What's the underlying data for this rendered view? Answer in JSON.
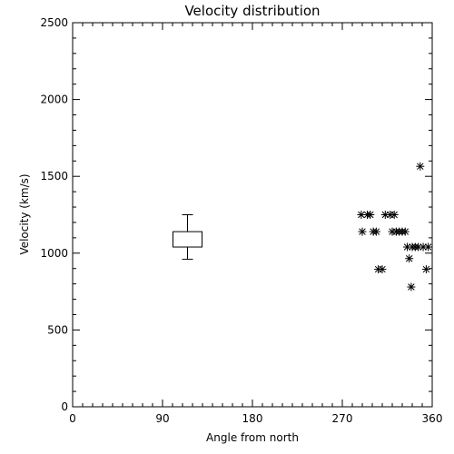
{
  "chart_data": {
    "type": "scatter",
    "title": "Velocity distribution",
    "xlabel": "Angle from north",
    "ylabel": "Velocity (km/s)",
    "xlim": [
      0,
      360
    ],
    "ylim": [
      0,
      2500
    ],
    "xticks": [
      0,
      90,
      180,
      270,
      360
    ],
    "yticks": [
      0,
      500,
      1000,
      1500,
      2000,
      2500
    ],
    "grid": false,
    "box": {
      "x": 115,
      "min": 960,
      "q1": 1040,
      "median": 1085,
      "q3": 1140,
      "max": 1250
    },
    "points": [
      {
        "x": 289,
        "y": 1250
      },
      {
        "x": 295,
        "y": 1250
      },
      {
        "x": 298,
        "y": 1250
      },
      {
        "x": 290,
        "y": 1140
      },
      {
        "x": 301,
        "y": 1140
      },
      {
        "x": 304,
        "y": 1140
      },
      {
        "x": 306,
        "y": 895
      },
      {
        "x": 310,
        "y": 895
      },
      {
        "x": 313,
        "y": 1250
      },
      {
        "x": 318,
        "y": 1250
      },
      {
        "x": 322,
        "y": 1250
      },
      {
        "x": 320,
        "y": 1140
      },
      {
        "x": 324,
        "y": 1140
      },
      {
        "x": 327,
        "y": 1140
      },
      {
        "x": 330,
        "y": 1140
      },
      {
        "x": 333,
        "y": 1140
      },
      {
        "x": 335,
        "y": 1040
      },
      {
        "x": 340,
        "y": 1040
      },
      {
        "x": 343,
        "y": 1040
      },
      {
        "x": 346,
        "y": 1040
      },
      {
        "x": 351,
        "y": 1040
      },
      {
        "x": 356,
        "y": 1040
      },
      {
        "x": 337,
        "y": 965
      },
      {
        "x": 339,
        "y": 780
      },
      {
        "x": 348,
        "y": 1565
      },
      {
        "x": 354,
        "y": 895
      }
    ]
  }
}
